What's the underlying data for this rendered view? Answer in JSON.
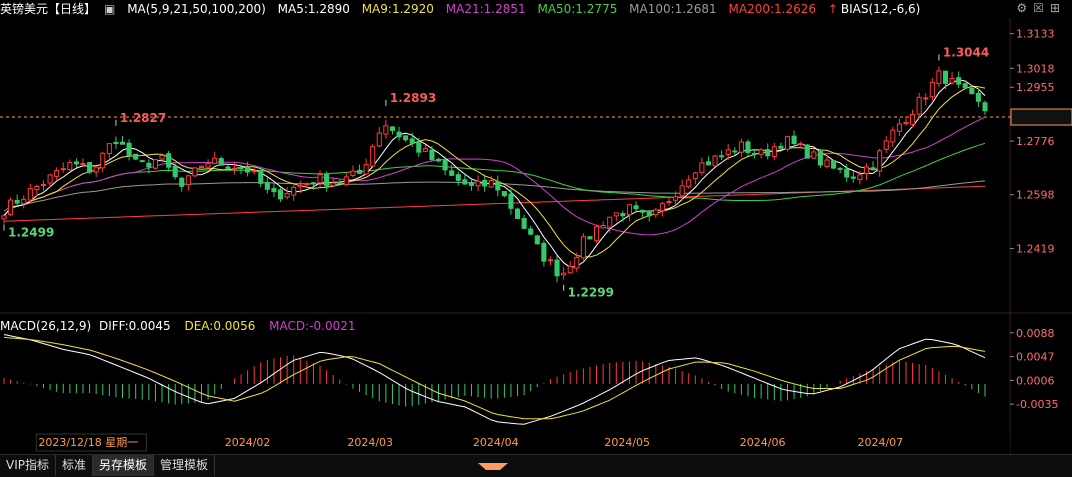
{
  "header": {
    "symbol": "英镑美元【日线】",
    "ma_label": "MA(5,9,21,50,100,200)",
    "ma_items": [
      {
        "text": "MA5:1.2890",
        "color": "#ffffff"
      },
      {
        "text": "MA9:1.2920",
        "color": "#f0e040"
      },
      {
        "text": "MA21:1.2851",
        "color": "#d040d0"
      },
      {
        "text": "MA50:1.2775",
        "color": "#40d040"
      },
      {
        "text": "MA100:1.2681",
        "color": "#9a9a9a"
      },
      {
        "text": "MA200:1.2626",
        "color": "#ff4040"
      }
    ],
    "bias_label": "BIAS(12,-6,6)"
  },
  "macd_header": {
    "label": "MACD(26,12,9)",
    "diff": "DIFF:0.0045",
    "dea": "DEA:0.0056",
    "macd": "MACD:-0.0021"
  },
  "toolbar": {
    "tabs": [
      "VIP指标",
      "标准",
      "另存模板",
      "管理模板"
    ],
    "active_tab": "另存模板"
  },
  "colors": {
    "up": "#ff3b3b",
    "down": "#35c86a",
    "ma5": "#ffffff",
    "ma9": "#f0e040",
    "ma21": "#d040d0",
    "ma50": "#40d040",
    "ma100": "#9a9a9a",
    "ma200": "#ff4040"
  },
  "chart_data": {
    "type": "candlestick",
    "price_axis_ticks": [
      "1.3133",
      "1.3018",
      "1.2955",
      "1.2856",
      "1.2776",
      "1.2598",
      "1.2419"
    ],
    "price_ylim": [
      1.2215,
      1.3185
    ],
    "dashed_reference_price": 1.2856,
    "annotations": [
      {
        "label": "1.2827",
        "value": 1.2827,
        "kind": "high"
      },
      {
        "label": "1.2499",
        "value": 1.2499,
        "kind": "low"
      },
      {
        "label": "1.2893",
        "value": 1.2893,
        "kind": "high"
      },
      {
        "label": "1.2299",
        "value": 1.2299,
        "kind": "low"
      },
      {
        "label": "1.3044",
        "value": 1.3044,
        "kind": "high"
      }
    ],
    "anchors": [
      [
        1.2548,
        1.2525,
        1.2571
      ],
      [
        1.26,
        1.2573,
        1.2621
      ],
      [
        1.265,
        1.262,
        1.2686
      ],
      [
        1.27,
        1.2667,
        1.2733
      ],
      [
        1.268,
        1.2654,
        1.2706
      ],
      [
        1.279,
        1.2763,
        1.2827
      ],
      [
        1.269,
        1.2663,
        1.2717
      ],
      [
        1.272,
        1.2696,
        1.2748
      ],
      [
        1.262,
        1.2592,
        1.265
      ],
      [
        1.271,
        1.2685,
        1.274
      ],
      [
        1.27,
        1.2676,
        1.2725
      ],
      [
        1.268,
        1.2654,
        1.271
      ],
      [
        1.259,
        1.256,
        1.262
      ],
      [
        1.262,
        1.2594,
        1.2648
      ],
      [
        1.265,
        1.2626,
        1.268
      ],
      [
        1.264,
        1.261,
        1.2667
      ],
      [
        1.267,
        1.2646,
        1.2698
      ],
      [
        1.284,
        1.2808,
        1.2893
      ],
      [
        1.278,
        1.2752,
        1.2806
      ],
      [
        1.273,
        1.2706,
        1.2758
      ],
      [
        1.266,
        1.2633,
        1.2688
      ],
      [
        1.262,
        1.2592,
        1.2652
      ],
      [
        1.264,
        1.2612,
        1.267
      ],
      [
        1.253,
        1.2502,
        1.256
      ],
      [
        1.241,
        1.238,
        1.2438
      ],
      [
        1.233,
        1.2299,
        1.236
      ],
      [
        1.244,
        1.2418,
        1.247
      ],
      [
        1.252,
        1.2494,
        1.2548
      ],
      [
        1.255,
        1.2524,
        1.2578
      ],
      [
        1.251,
        1.2486,
        1.2536
      ],
      [
        1.26,
        1.2574,
        1.2628
      ],
      [
        1.269,
        1.2667,
        1.2718
      ],
      [
        1.272,
        1.2696,
        1.2746
      ],
      [
        1.276,
        1.2732,
        1.2788
      ],
      [
        1.273,
        1.27,
        1.276
      ],
      [
        1.278,
        1.2752,
        1.2806
      ],
      [
        1.274,
        1.2716,
        1.277
      ],
      [
        1.269,
        1.2665,
        1.2716
      ],
      [
        1.266,
        1.263,
        1.2686
      ],
      [
        1.27,
        1.2676,
        1.273
      ],
      [
        1.282,
        1.2791,
        1.2848
      ],
      [
        1.29,
        1.2872,
        1.293
      ],
      [
        1.3,
        1.2968,
        1.3044
      ],
      [
        1.294,
        1.2912,
        1.2968
      ],
      [
        1.288,
        1.2851,
        1.2906
      ]
    ],
    "dates": [
      {
        "label": "2023/12/18 星期一"
      },
      {
        "label": "2024/02"
      },
      {
        "label": "2024/03"
      },
      {
        "label": "2024/04"
      },
      {
        "label": "2024/05"
      },
      {
        "label": "2024/06"
      },
      {
        "label": "2024/07"
      }
    ],
    "macd_axis_ticks": [
      "0.0088",
      "0.0047",
      "0.0006",
      "-0.0035"
    ],
    "macd_ylim": [
      -0.0083,
      0.0098
    ],
    "diff_anchors": [
      0.0085,
      0.0075,
      0.006,
      0.005,
      0.003,
      0.001,
      -0.0015,
      -0.0035,
      -0.0025,
      0.0005,
      0.004,
      0.0055,
      0.0045,
      0.002,
      -0.001,
      -0.003,
      -0.004,
      -0.0065,
      -0.007,
      -0.0055,
      -0.0035,
      -0.001,
      0.002,
      0.004,
      0.0045,
      0.003,
      0.001,
      -0.001,
      -0.0018,
      -0.0005,
      0.002,
      0.006,
      0.0078,
      0.0068,
      0.0045
    ],
    "dea_anchors": [
      0.008,
      0.0076,
      0.0068,
      0.0058,
      0.0042,
      0.0024,
      0.0003,
      -0.002,
      -0.003,
      -0.0015,
      0.0015,
      0.004,
      0.0048,
      0.0035,
      0.001,
      -0.0015,
      -0.003,
      -0.0052,
      -0.006,
      -0.006,
      -0.0048,
      -0.0028,
      0.0,
      0.0025,
      0.0038,
      0.0036,
      0.0022,
      0.0005,
      -0.0008,
      -0.0008,
      0.0008,
      0.004,
      0.0062,
      0.0065,
      0.0056
    ]
  }
}
